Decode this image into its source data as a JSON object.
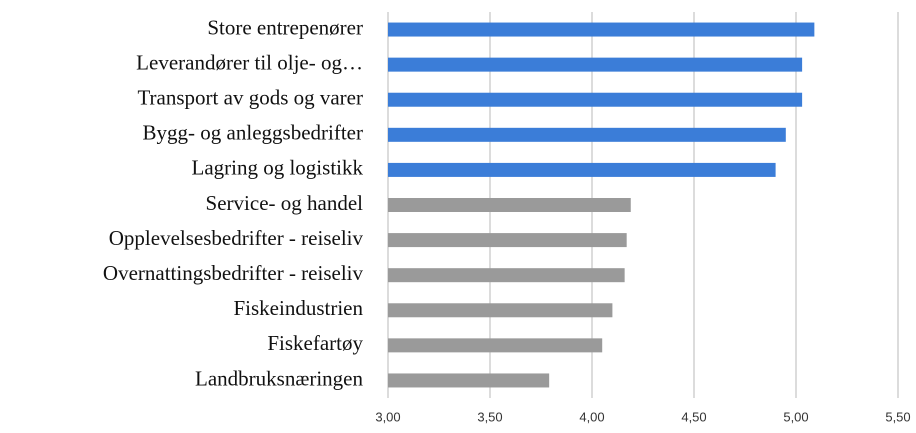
{
  "chart_data": {
    "type": "bar",
    "orientation": "horizontal",
    "categories": [
      "Store entrepenører",
      "Leverandører til olje- og…",
      "Transport av gods og varer",
      "Bygg- og anleggsbedrifter",
      "Lagring og logistikk",
      "Service- og handel",
      "Opplevelsesbedrifter - reiseliv",
      "Overnattingsbedrifter - reiseliv",
      "Fiskeindustrien",
      "Fiskefartøy",
      "Landbruksnæringen"
    ],
    "values": [
      5.09,
      5.03,
      5.03,
      4.95,
      4.9,
      4.19,
      4.17,
      4.16,
      4.1,
      4.05,
      3.79
    ],
    "colors": [
      "#3b7dd8",
      "#3b7dd8",
      "#3b7dd8",
      "#3b7dd8",
      "#3b7dd8",
      "#9a9a9a",
      "#9a9a9a",
      "#9a9a9a",
      "#9a9a9a",
      "#9a9a9a",
      "#9a9a9a"
    ],
    "xlim": [
      3.0,
      5.5
    ],
    "xticks": [
      {
        "value": 3.0,
        "label": "3,00"
      },
      {
        "value": 3.5,
        "label": "3,50"
      },
      {
        "value": 4.0,
        "label": "4,00"
      },
      {
        "value": 4.5,
        "label": "4,50"
      },
      {
        "value": 5.0,
        "label": "5,00"
      },
      {
        "value": 5.5,
        "label": "5,50"
      }
    ],
    "grid": true
  }
}
